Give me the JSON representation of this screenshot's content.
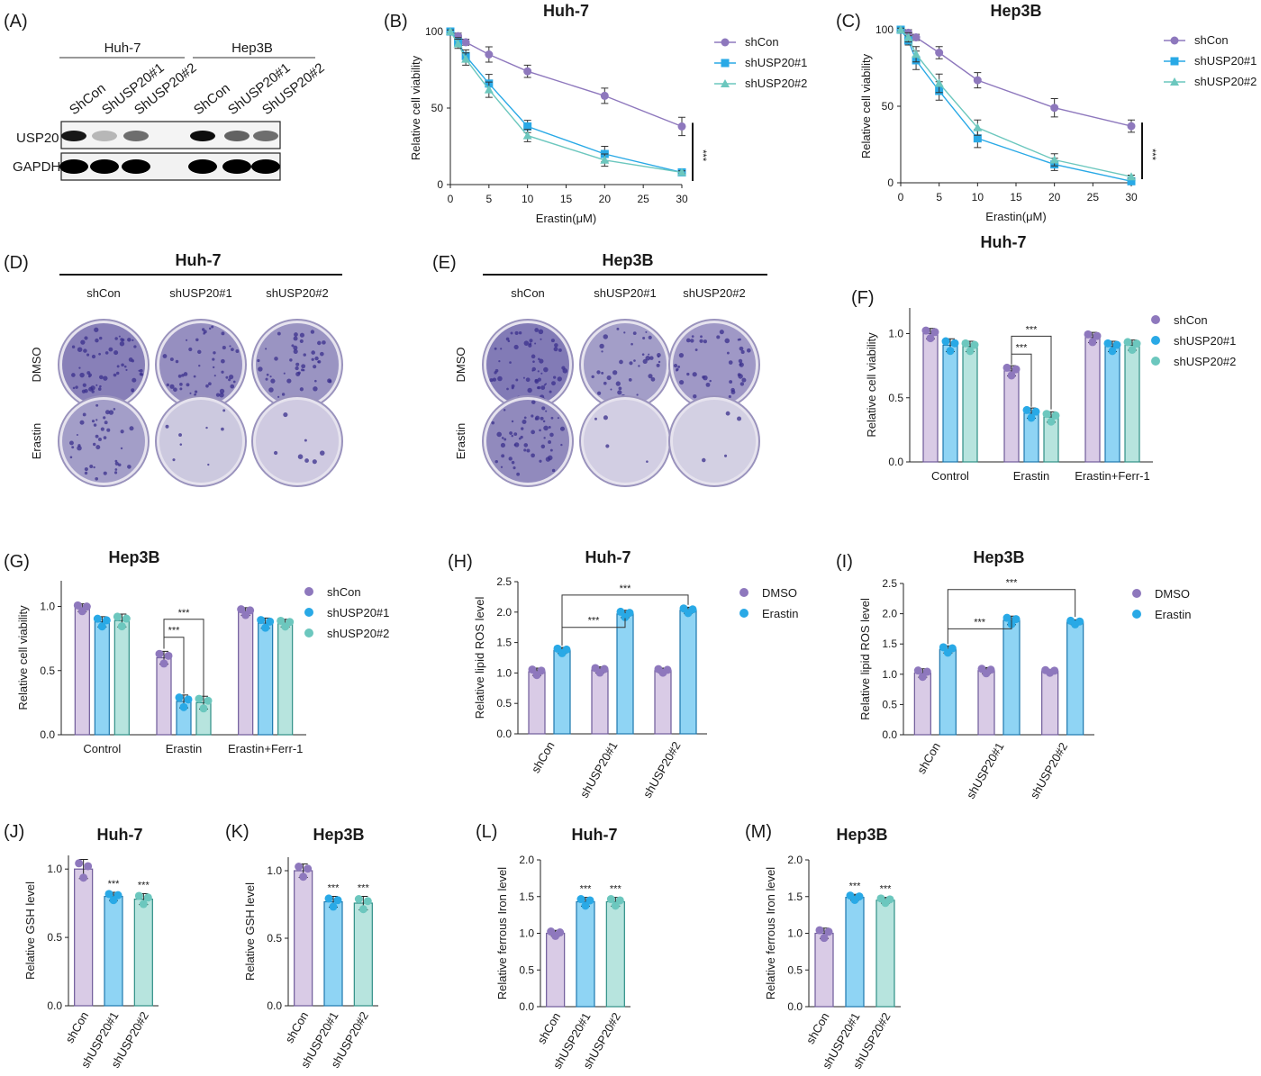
{
  "figure": {
    "colors": {
      "shCon_line": "#8e78bd",
      "sh1_line": "#29a9e6",
      "sh2_line": "#6cc7be",
      "bar_purple": "#d9cbe6",
      "bar_purple_edge": "#6e5a99",
      "dot_purple": "#8e78bd",
      "bar_blue": "#8fd4f4",
      "bar_blue_edge": "#1d77ad",
      "dot_blue": "#29a9e6",
      "bar_teal": "#b7e4de",
      "bar_teal_edge": "#2f8f86",
      "dot_teal": "#6cc7be",
      "dish": "#3a2f8c"
    },
    "panels": {
      "A": {
        "label": "(A)",
        "groups": [
          "Huh-7",
          "Hep3B"
        ],
        "lanes": [
          "ShCon",
          "ShUSP20#1",
          "ShUSP20#2",
          "ShCon",
          "ShUSP20#1",
          "ShUSP20#2"
        ],
        "rows": [
          "USP20",
          "GAPDH"
        ],
        "usp20_intensity": [
          0.9,
          0.25,
          0.55,
          0.95,
          0.6,
          0.55
        ],
        "gapdh_intensity": [
          1,
          1,
          1,
          1,
          1,
          1
        ]
      },
      "B": {
        "label": "(B)"
      },
      "C": {
        "label": "(C)"
      },
      "D": {
        "label": "(D)",
        "title": "Huh-7",
        "columns": [
          "shCon",
          "shUSP20#1",
          "shUSP20#2"
        ],
        "rows": [
          "DMSO",
          "Erastin"
        ],
        "density": [
          [
            0.85,
            0.7,
            0.65
          ],
          [
            0.55,
            0.12,
            0.1
          ]
        ]
      },
      "E": {
        "label": "(E)",
        "title": "Hep3B",
        "columns": [
          "shCon",
          "shUSP20#1",
          "shUSP20#2"
        ],
        "rows": [
          "DMSO",
          "Erastin"
        ],
        "density": [
          [
            0.9,
            0.55,
            0.6
          ],
          [
            0.75,
            0.06,
            0.05
          ]
        ]
      },
      "F": {
        "label": "(F)"
      },
      "G": {
        "label": "(G)"
      },
      "H": {
        "label": "(H)"
      },
      "I": {
        "label": "(I)"
      },
      "J": {
        "label": "(J)"
      },
      "K": {
        "label": "(K)"
      },
      "L": {
        "label": "(L)"
      },
      "M": {
        "label": "(M)"
      }
    }
  },
  "chart_data": [
    {
      "id": "B",
      "type": "line",
      "title": "Huh-7",
      "xlabel": "Erastin(μM)",
      "ylabel": "Relative cell viability",
      "xlim": [
        0,
        30
      ],
      "ylim": [
        0,
        100
      ],
      "xticks": [
        0,
        5,
        10,
        15,
        20,
        25,
        30
      ],
      "yticks": [
        0,
        50,
        100
      ],
      "series": [
        {
          "name": "shCon",
          "marker": "circle",
          "x": [
            0,
            1,
            2,
            5,
            10,
            20,
            30
          ],
          "y": [
            100,
            97,
            93,
            85,
            74,
            58,
            38
          ],
          "err": [
            1,
            2,
            2,
            5,
            4,
            5,
            6
          ]
        },
        {
          "name": "shUSP20#1",
          "marker": "square",
          "x": [
            0,
            1,
            2,
            5,
            10,
            20,
            30
          ],
          "y": [
            100,
            93,
            84,
            66,
            38,
            20,
            8
          ],
          "err": [
            1,
            3,
            4,
            6,
            4,
            5,
            1
          ]
        },
        {
          "name": "shUSP20#2",
          "marker": "triangle",
          "x": [
            0,
            1,
            2,
            5,
            10,
            20,
            30
          ],
          "y": [
            100,
            92,
            82,
            62,
            32,
            16,
            8
          ],
          "err": [
            1,
            3,
            4,
            5,
            4,
            4,
            1
          ]
        }
      ],
      "significance": "***"
    },
    {
      "id": "C",
      "type": "line",
      "title": "Hep3B",
      "xlabel": "Erastin(μM)",
      "ylabel": "Relative cell viability",
      "xlim": [
        0,
        30
      ],
      "ylim": [
        0,
        100
      ],
      "xticks": [
        0,
        5,
        10,
        15,
        20,
        25,
        30
      ],
      "yticks": [
        0,
        50,
        100
      ],
      "series": [
        {
          "name": "shCon",
          "marker": "circle",
          "x": [
            0,
            1,
            2,
            5,
            10,
            20,
            30
          ],
          "y": [
            100,
            98,
            95,
            85,
            67,
            49,
            37
          ],
          "err": [
            1,
            2,
            2,
            4,
            5,
            6,
            4
          ]
        },
        {
          "name": "shUSP20#1",
          "marker": "square",
          "x": [
            0,
            1,
            2,
            5,
            10,
            20,
            30
          ],
          "y": [
            100,
            93,
            80,
            60,
            29,
            12,
            1
          ],
          "err": [
            1,
            3,
            6,
            6,
            6,
            4,
            1
          ]
        },
        {
          "name": "shUSP20#2",
          "marker": "triangle",
          "x": [
            0,
            1,
            2,
            5,
            10,
            20,
            30
          ],
          "y": [
            100,
            95,
            84,
            65,
            36,
            15,
            4
          ],
          "err": [
            1,
            3,
            5,
            6,
            5,
            4,
            1
          ]
        }
      ],
      "significance": "***",
      "note": "Huh-7"
    },
    {
      "id": "F",
      "type": "bar",
      "title": "",
      "ylabel": "Relative cell viability",
      "ylim": [
        0,
        1.2
      ],
      "yticks": [
        0.0,
        0.5,
        1.0
      ],
      "categories": [
        "Control",
        "Erastin",
        "Erastin+Ferr-1"
      ],
      "series": [
        {
          "name": "shCon",
          "values": [
            1.0,
            0.71,
            0.97
          ],
          "err": [
            0.04,
            0.04,
            0.04
          ]
        },
        {
          "name": "shUSP20#1",
          "values": [
            0.91,
            0.38,
            0.9
          ],
          "err": [
            0.05,
            0.04,
            0.04
          ]
        },
        {
          "name": "shUSP20#2",
          "values": [
            0.9,
            0.35,
            0.91
          ],
          "err": [
            0.04,
            0.04,
            0.04
          ]
        }
      ],
      "legend": "right",
      "significance": "***"
    },
    {
      "id": "G",
      "type": "bar",
      "title": "Hep3B",
      "ylabel": "Relative cell viability",
      "ylim": [
        0,
        1.2
      ],
      "yticks": [
        0.0,
        0.5,
        1.0
      ],
      "categories": [
        "Control",
        "Erastin",
        "Erastin+Ferr-1"
      ],
      "series": [
        {
          "name": "shCon",
          "values": [
            0.99,
            0.6,
            0.96
          ],
          "err": [
            0.03,
            0.05,
            0.03
          ]
        },
        {
          "name": "shUSP20#1",
          "values": [
            0.88,
            0.26,
            0.87
          ],
          "err": [
            0.04,
            0.05,
            0.04
          ]
        },
        {
          "name": "shUSP20#2",
          "values": [
            0.89,
            0.25,
            0.87
          ],
          "err": [
            0.05,
            0.05,
            0.03
          ]
        }
      ],
      "legend": "right",
      "significance": "***"
    },
    {
      "id": "H",
      "type": "bar",
      "title": "Huh-7",
      "ylabel": "Relative lipid ROS level",
      "ylim": [
        0,
        2.5
      ],
      "yticks": [
        0.0,
        0.5,
        1.0,
        1.5,
        2.0,
        2.5
      ],
      "categories": [
        "shCon",
        "shUSP20#1",
        "shUSP20#2"
      ],
      "series": [
        {
          "name": "DMSO",
          "values": [
            1.02,
            1.05,
            1.04
          ],
          "err": [
            0.06,
            0.05,
            0.04
          ]
        },
        {
          "name": "Erastin",
          "values": [
            1.37,
            1.97,
            2.03
          ],
          "err": [
            0.05,
            0.06,
            0.05
          ]
        }
      ],
      "legend": "right",
      "significance": "***"
    },
    {
      "id": "I",
      "type": "bar",
      "title": "Hep3B",
      "ylabel": "Relative lipid ROS level",
      "ylim": [
        0,
        2.5
      ],
      "yticks": [
        0.0,
        0.5,
        1.0,
        1.5,
        2.0,
        2.5
      ],
      "categories": [
        "shCon",
        "shUSP20#1",
        "shUSP20#2"
      ],
      "series": [
        {
          "name": "DMSO",
          "values": [
            1.02,
            1.06,
            1.05
          ],
          "err": [
            0.07,
            0.05,
            0.03
          ]
        },
        {
          "name": "Erastin",
          "values": [
            1.41,
            1.89,
            1.86
          ],
          "err": [
            0.06,
            0.07,
            0.04
          ]
        }
      ],
      "legend": "right",
      "significance": "***"
    },
    {
      "id": "J",
      "type": "bar",
      "title": "Huh-7",
      "ylabel": "Relative GSH level",
      "ylim": [
        0,
        1.1
      ],
      "yticks": [
        0.0,
        0.5,
        1.0
      ],
      "categories": [
        "shCon",
        "shUSP20#1",
        "shUSP20#2"
      ],
      "values": [
        1.0,
        0.8,
        0.78
      ],
      "err": [
        0.07,
        0.03,
        0.04
      ],
      "annotations": [
        "",
        "***",
        "***"
      ]
    },
    {
      "id": "K",
      "type": "bar",
      "title": "Hep3B",
      "ylabel": "Relative GSH level",
      "ylim": [
        0,
        1.1
      ],
      "yticks": [
        0.0,
        0.5,
        1.0
      ],
      "categories": [
        "shCon",
        "shUSP20#1",
        "shUSP20#2"
      ],
      "values": [
        1.0,
        0.77,
        0.76
      ],
      "err": [
        0.05,
        0.04,
        0.05
      ],
      "annotations": [
        "",
        "***",
        "***"
      ]
    },
    {
      "id": "L",
      "type": "bar",
      "title": "Huh-7",
      "ylabel": "Relative ferrous Iron level",
      "ylim": [
        0,
        2.0
      ],
      "yticks": [
        0.0,
        0.5,
        1.0,
        1.5,
        2.0
      ],
      "categories": [
        "shCon",
        "shUSP20#1",
        "shUSP20#2"
      ],
      "values": [
        1.0,
        1.43,
        1.43
      ],
      "err": [
        0.04,
        0.06,
        0.06
      ],
      "annotations": [
        "",
        "***",
        "***"
      ]
    },
    {
      "id": "M",
      "type": "bar",
      "title": "Hep3B",
      "ylabel": "Relative ferrous Iron level",
      "ylim": [
        0,
        2.0
      ],
      "yticks": [
        0.0,
        0.5,
        1.0,
        1.5,
        2.0
      ],
      "categories": [
        "shCon",
        "shUSP20#1",
        "shUSP20#2"
      ],
      "values": [
        1.0,
        1.49,
        1.45
      ],
      "err": [
        0.07,
        0.04,
        0.04
      ],
      "annotations": [
        "",
        "***",
        "***"
      ]
    }
  ]
}
